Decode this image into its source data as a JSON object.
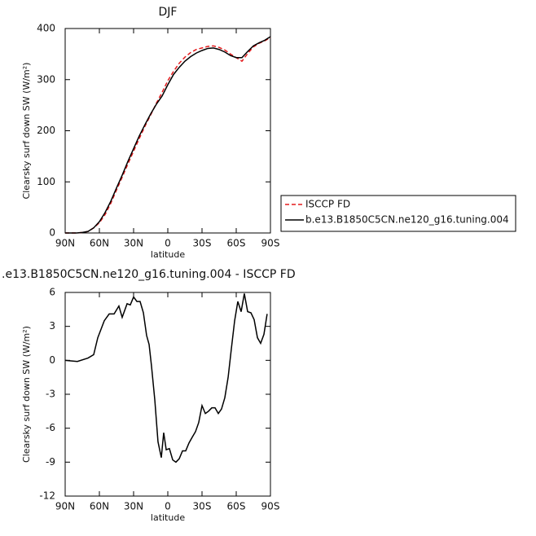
{
  "chart_data": [
    {
      "type": "line",
      "title": "DJF",
      "xlabel": "latitude",
      "ylabel": "Clearsky surf down SW (W/m²)",
      "x": [
        90,
        85,
        80,
        75,
        70,
        65,
        60,
        55,
        50,
        45,
        40,
        35,
        30,
        25,
        20,
        15,
        10,
        5,
        0,
        -5,
        -10,
        -15,
        -20,
        -25,
        -30,
        -35,
        -40,
        -45,
        -50,
        -55,
        -60,
        -65,
        -70,
        -75,
        -80,
        -85,
        -90
      ],
      "series": [
        {
          "name": "ISCCP FD",
          "color": "#e41a1c",
          "dash": true,
          "values": [
            0,
            0,
            0,
            1,
            3,
            10,
            20,
            36,
            58,
            84,
            109,
            135,
            160,
            185,
            209,
            231,
            254,
            275,
            298,
            316,
            332,
            344,
            353,
            359,
            362,
            365,
            366,
            363,
            358,
            350,
            343,
            336,
            351,
            364,
            371,
            376,
            382
          ]
        },
        {
          "name": "b.e13.B1850C5CN.ne120_g16.tuning.004",
          "color": "#000000",
          "dash": false,
          "values": [
            0,
            0,
            0,
            1,
            3,
            10,
            22,
            40,
            62,
            88,
            113,
            140,
            165,
            190,
            212,
            233,
            252,
            268,
            290,
            310,
            324,
            336,
            345,
            352,
            357,
            361,
            362,
            359,
            354,
            347,
            343,
            343,
            355,
            366,
            372,
            377,
            384
          ]
        }
      ],
      "xlim": [
        90,
        -90
      ],
      "xticks": [
        {
          "value": 90,
          "label": "90N"
        },
        {
          "value": 60,
          "label": "60N"
        },
        {
          "value": 30,
          "label": "30N"
        },
        0,
        {
          "value": -30,
          "label": "30S"
        },
        {
          "value": -60,
          "label": "60S"
        },
        {
          "value": -90,
          "label": "90S"
        }
      ],
      "ylim": [
        0,
        400
      ],
      "yticks": [
        0,
        100,
        200,
        300,
        400
      ],
      "legend": "right"
    },
    {
      "type": "line",
      "title": ".e13.B1850C5CN.ne120_g16.tuning.004 - ISCCP FD",
      "xlabel": "latitude",
      "ylabel": "Clearsky surf down SW (W/m²)",
      "x": [
        90,
        79.3,
        70,
        65,
        61.4,
        55.7,
        51.4,
        47.1,
        42.9,
        40,
        35.7,
        32.9,
        30,
        27.1,
        24.3,
        21.4,
        18.6,
        16.4,
        14.3,
        11.4,
        8.6,
        5.7,
        3.6,
        1.4,
        -1.4,
        -4.3,
        -7.1,
        -10,
        -12.9,
        -15.7,
        -18.6,
        -21.4,
        -24.3,
        -27.1,
        -30,
        -32.9,
        -35.7,
        -38.6,
        -41.4,
        -44.3,
        -47.1,
        -50,
        -52.9,
        -55.7,
        -58.6,
        -61.4,
        -64.3,
        -67.1,
        -70,
        -72.9,
        -75.7,
        -78.6,
        -81.4,
        -84.3,
        -87.1
      ],
      "values": [
        0,
        -0.1,
        0.2,
        0.5,
        2,
        3.5,
        4.1,
        4.1,
        4.8,
        3.8,
        5,
        4.9,
        5.6,
        5.2,
        5.2,
        4.2,
        2.2,
        1.4,
        -0.5,
        -3.5,
        -7.2,
        -8.6,
        -6.4,
        -7.9,
        -7.8,
        -8.8,
        -9,
        -8.7,
        -8,
        -8,
        -7.3,
        -6.8,
        -6.3,
        -5.5,
        -4,
        -4.7,
        -4.5,
        -4.2,
        -4.2,
        -4.7,
        -4.3,
        -3.3,
        -1.5,
        1,
        3.5,
        5.2,
        4.3,
        5.9,
        4.3,
        4.2,
        3.6,
        2,
        1.5,
        2.3,
        4.1
      ],
      "color": "#000000",
      "xlim": [
        90,
        -90
      ],
      "xticks": [
        {
          "value": 90,
          "label": "90N"
        },
        {
          "value": 60,
          "label": "60N"
        },
        {
          "value": 30,
          "label": "30N"
        },
        0,
        {
          "value": -30,
          "label": "30S"
        },
        {
          "value": -60,
          "label": "60S"
        },
        {
          "value": -90,
          "label": "90S"
        }
      ],
      "ylim": [
        -12,
        6
      ],
      "yticks": [
        -12,
        -9,
        -6,
        -3,
        0,
        3,
        6
      ]
    }
  ]
}
